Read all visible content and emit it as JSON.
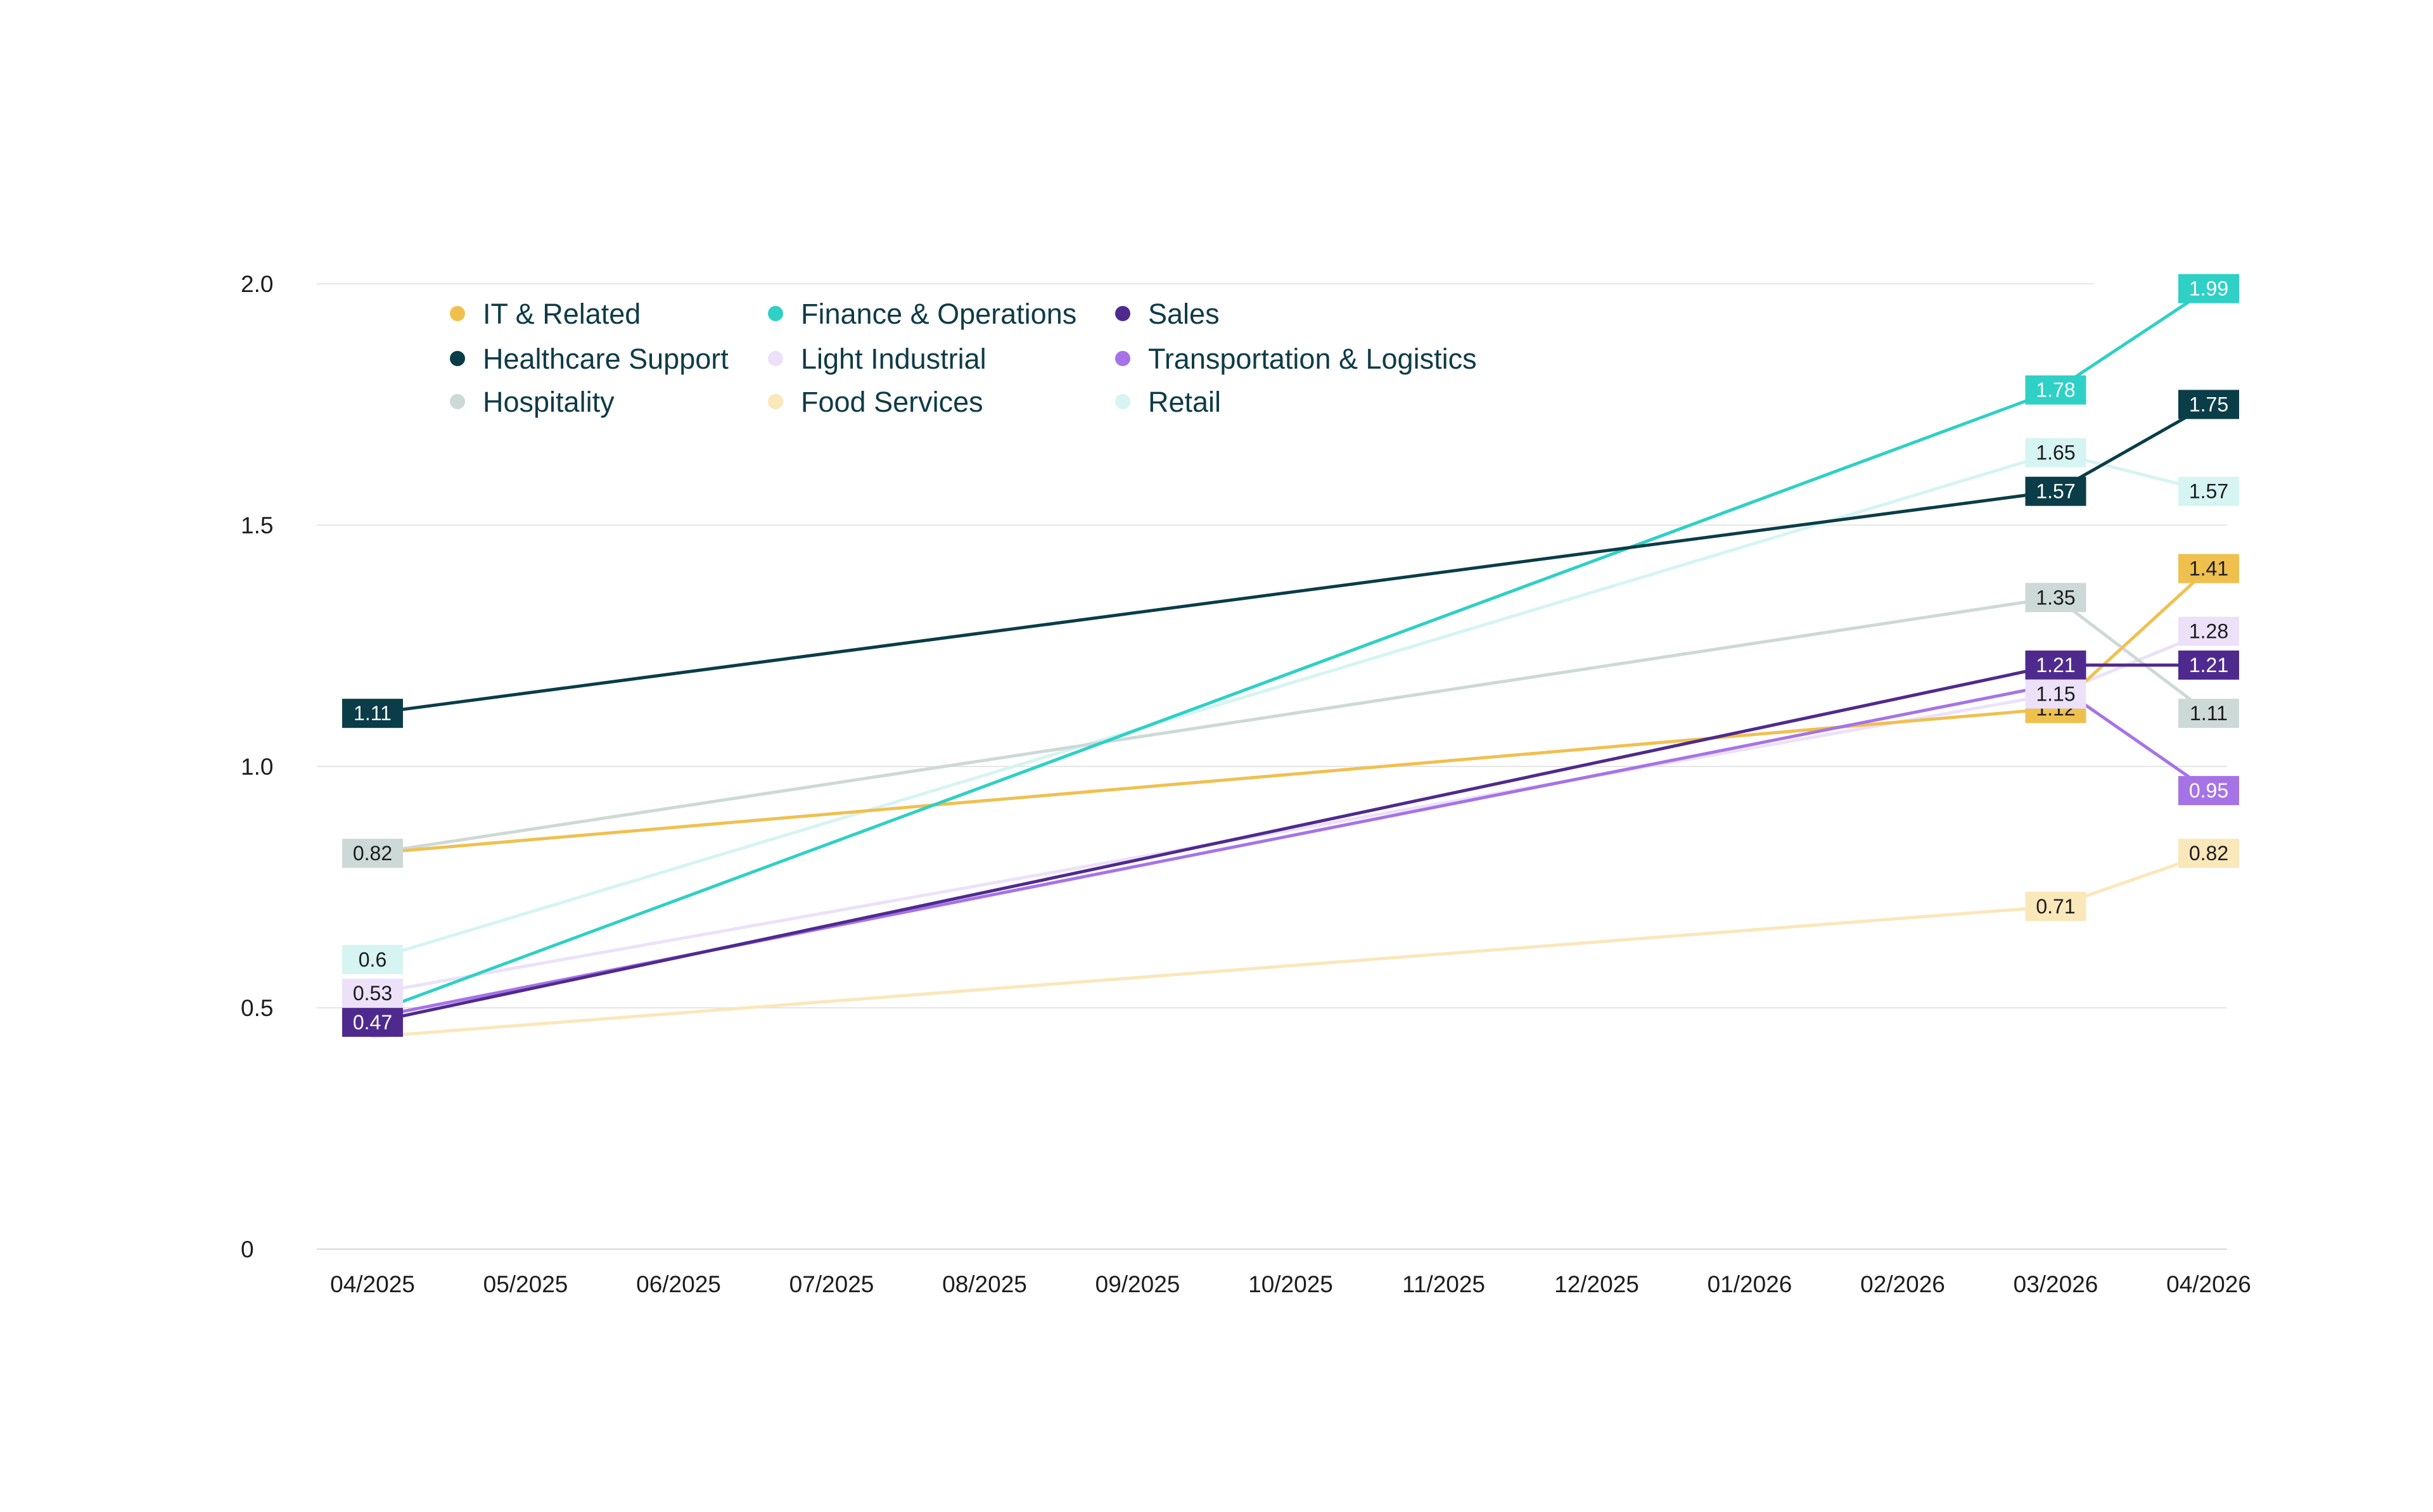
{
  "chart_data": {
    "type": "line",
    "title": "",
    "xlabel": "",
    "ylabel": "",
    "ylim": [
      0,
      2.0
    ],
    "y_ticks": [
      "0",
      "0.5",
      "1.0",
      "1.5",
      "2.0"
    ],
    "y_tick_values": [
      0,
      0.5,
      1.0,
      1.5,
      2.0
    ],
    "x": [
      "04/2025",
      "05/2025",
      "06/2025",
      "07/2025",
      "08/2025",
      "09/2025",
      "10/2025",
      "11/2025",
      "12/2025",
      "01/2026",
      "02/2026",
      "03/2026",
      "04/2026"
    ],
    "grid": true,
    "legend_position": "top-left",
    "series": [
      {
        "name": "IT & Related",
        "color": "#f0c04f",
        "label_text_color": "#1c1c1c",
        "points": [
          {
            "x": "04/2025",
            "y": 0.82,
            "label": ""
          },
          {
            "x": "03/2026",
            "y": 1.12,
            "label": "1.12"
          },
          {
            "x": "04/2026",
            "y": 1.41,
            "label": "1.41"
          }
        ]
      },
      {
        "name": "Finance & Operations",
        "color": "#2fd0c5",
        "label_text_color": "#ffffff",
        "points": [
          {
            "x": "04/2025",
            "y": 0.49,
            "label": ""
          },
          {
            "x": "03/2026",
            "y": 1.78,
            "label": "1.78"
          },
          {
            "x": "04/2026",
            "y": 1.99,
            "label": "1.99"
          }
        ]
      },
      {
        "name": "Sales",
        "color": "#4f2a8e",
        "label_text_color": "#ffffff",
        "points": [
          {
            "x": "04/2025",
            "y": 0.47,
            "label": "0.47"
          },
          {
            "x": "03/2026",
            "y": 1.21,
            "label": "1.21"
          },
          {
            "x": "04/2026",
            "y": 1.21,
            "label": "1.21"
          }
        ]
      },
      {
        "name": "Healthcare Support",
        "color": "#0a3d47",
        "label_text_color": "#ffffff",
        "points": [
          {
            "x": "04/2025",
            "y": 1.11,
            "label": "1.11"
          },
          {
            "x": "03/2026",
            "y": 1.57,
            "label": "1.57"
          },
          {
            "x": "04/2026",
            "y": 1.75,
            "label": "1.75"
          }
        ]
      },
      {
        "name": "Light Industrial",
        "color": "#ece1f9",
        "label_text_color": "#1c1c1c",
        "points": [
          {
            "x": "04/2025",
            "y": 0.53,
            "label": "0.53"
          },
          {
            "x": "03/2026",
            "y": 1.15,
            "label": "1.15"
          },
          {
            "x": "04/2026",
            "y": 1.28,
            "label": "1.28"
          }
        ]
      },
      {
        "name": "Transportation & Logistics",
        "color": "#a673e6",
        "label_text_color": "#ffffff",
        "points": [
          {
            "x": "04/2025",
            "y": 0.48,
            "label": ""
          },
          {
            "x": "03/2026",
            "y": 1.17,
            "label": ""
          },
          {
            "x": "04/2026",
            "y": 0.95,
            "label": "0.95"
          }
        ]
      },
      {
        "name": "Hospitality",
        "color": "#cdd9d6",
        "label_text_color": "#1c1c1c",
        "points": [
          {
            "x": "04/2025",
            "y": 0.82,
            "label": "0.82"
          },
          {
            "x": "03/2026",
            "y": 1.35,
            "label": "1.35"
          },
          {
            "x": "04/2026",
            "y": 1.11,
            "label": "1.11"
          }
        ]
      },
      {
        "name": "Food Services",
        "color": "#fae7ba",
        "label_text_color": "#1c1c1c",
        "points": [
          {
            "x": "04/2025",
            "y": 0.44,
            "label": ""
          },
          {
            "x": "03/2026",
            "y": 0.71,
            "label": "0.71"
          },
          {
            "x": "04/2026",
            "y": 0.82,
            "label": "0.82"
          }
        ]
      },
      {
        "name": "Retail",
        "color": "#d5f4f2",
        "label_text_color": "#1c1c1c",
        "points": [
          {
            "x": "04/2025",
            "y": 0.6,
            "label": "0.6"
          },
          {
            "x": "03/2026",
            "y": 1.65,
            "label": "1.65"
          },
          {
            "x": "04/2026",
            "y": 1.57,
            "label": "1.57"
          }
        ]
      }
    ]
  }
}
